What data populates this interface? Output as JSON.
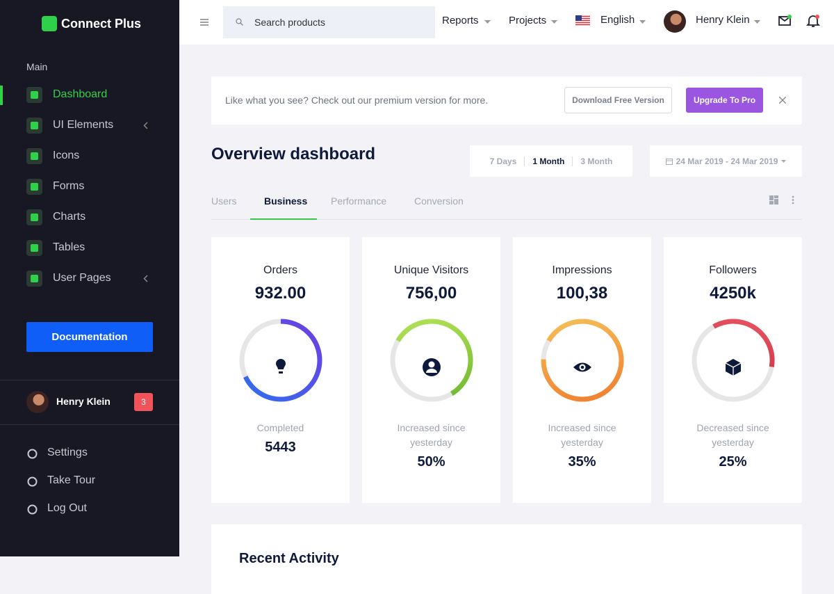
{
  "sidebar": {
    "brand": "Connect Plus",
    "section": "Main",
    "nav": [
      {
        "label": "Dashboard"
      },
      {
        "label": "UI Elements"
      },
      {
        "label": "Icons"
      },
      {
        "label": "Forms"
      },
      {
        "label": "Charts"
      },
      {
        "label": "Tables"
      },
      {
        "label": "User Pages"
      }
    ],
    "cta": "Documentation",
    "user": {
      "name": "Henry Klein",
      "badge": "3"
    },
    "footer": [
      "Settings",
      "Take Tour",
      "Log Out"
    ]
  },
  "topbar": {
    "search": "Search products",
    "menus": [
      "Reports",
      "Projects",
      "English"
    ],
    "user": "Henry Klein"
  },
  "banner": {
    "text": "Like what you see? Check out our premium version for more.",
    "buttons": [
      "Download Free Version",
      "Upgrade To Pro"
    ]
  },
  "overview": {
    "title": "Overview dashboard",
    "ranges": [
      "7 Days",
      "1 Month",
      "3 Month"
    ],
    "date": "24 Mar 2019 - 24 Mar 2019"
  },
  "tabs": [
    "Users",
    "Business",
    "Performance",
    "Conversion"
  ],
  "cards": [
    {
      "title": "Orders",
      "value": "932.00",
      "caption": "Completed",
      "stat": "5443"
    },
    {
      "title": "Unique Visitors",
      "value": "756,00",
      "caption": "Increased since yesterday",
      "stat": "50%"
    },
    {
      "title": "Impressions",
      "value": "100,38",
      "caption": "Increased since yesterday",
      "stat": "35%"
    },
    {
      "title": "Followers",
      "value": "4250k",
      "caption": "Decreased since yesterday",
      "stat": "25%"
    }
  ],
  "recent": {
    "title": "Recent Activity"
  }
}
